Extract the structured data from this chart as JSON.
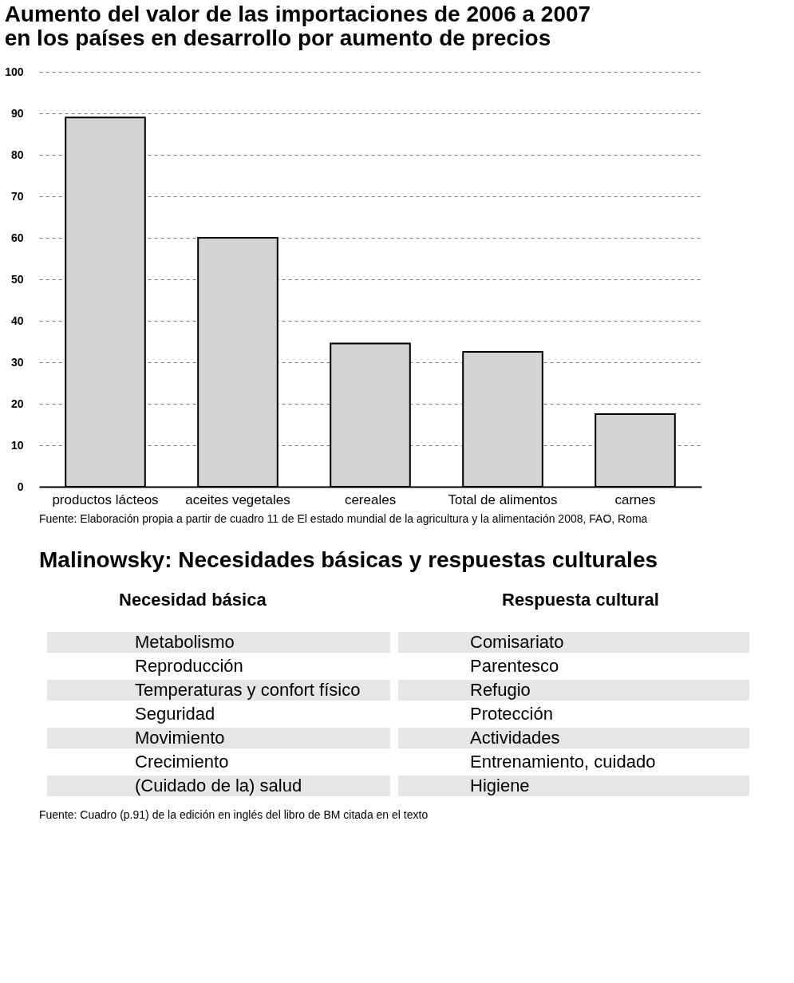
{
  "chart_data": [
    {
      "type": "bar",
      "title": [
        "Aumento del valor de las importaciones de 2006 a 2007",
        "en los países en desarrollo por aumento de precios"
      ],
      "categories": [
        "productos lácteos",
        "aceites vegetales",
        "cereales",
        "Total de alimentos",
        "carnes"
      ],
      "values": [
        89,
        60,
        34.5,
        32.5,
        17.5
      ],
      "color": "#d3d3d3",
      "ylim": [
        0,
        100
      ],
      "yticks": [
        0,
        10,
        20,
        30,
        40,
        50,
        60,
        70,
        80,
        90,
        100
      ],
      "grid": "y",
      "annotations": [
        "Fuente: Elaboración propia a partir de cuadro 11 de El estado mundial de la agricultura y la alimentación 2008, FAO, Roma"
      ]
    },
    {
      "type": "other",
      "title": "Malinowsky: Necesidades básicas y respuestas culturales",
      "annotations": [
        "Necesidad básica",
        "Respuesta cultural",
        "Metabolismo",
        "Comisariato",
        "Reproducción",
        "Parentesco",
        "Temperaturas y confort físico",
        "Refugio",
        "Seguridad",
        "Protección",
        "Movimiento",
        "Actividades",
        "Crecimiento",
        "Entrenamiento, cuidado",
        "(Cuidado de la) salud",
        "Higiene",
        "Fuente: Cuadro (p.91) de la edición en inglés del libro de BM citada en el texto"
      ]
    }
  ]
}
